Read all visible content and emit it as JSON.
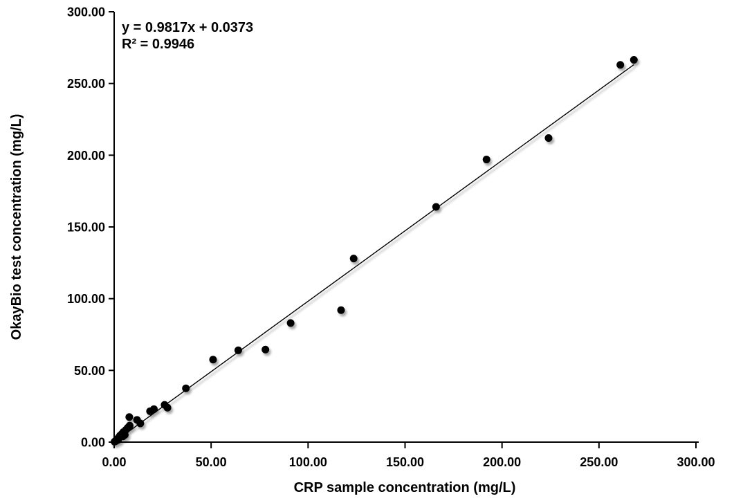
{
  "chart_data": {
    "type": "scatter",
    "title": "",
    "xlabel": "CRP sample concentration (mg/L)",
    "ylabel": "OkayBio test concentration (mg/L)",
    "equation": "y = 0.9817x + 0.0373",
    "r_squared": "R² = 0.9946",
    "xlim": [
      0,
      300
    ],
    "ylim": [
      0,
      300
    ],
    "x_ticks": {
      "values": [
        0,
        50,
        100,
        150,
        200,
        250,
        300
      ],
      "labels": [
        "0.00",
        "50.00",
        "100.00",
        "150.00",
        "200.00",
        "250.00",
        "300.00"
      ]
    },
    "y_ticks": {
      "values": [
        0,
        50,
        100,
        150,
        200,
        250,
        300
      ],
      "labels": [
        "0.00",
        "50.00",
        "100.00",
        "150.00",
        "200.00",
        "250.00",
        "300.00"
      ]
    },
    "grid": false,
    "legend": "none",
    "marker_color": "#000000",
    "line_color": "#000000",
    "background": "#ffffff",
    "points": [
      [
        0.2,
        0.3
      ],
      [
        0.8,
        1.0
      ],
      [
        1.0,
        0.8
      ],
      [
        1.5,
        2.0
      ],
      [
        2.0,
        1.5
      ],
      [
        2.3,
        3.2
      ],
      [
        3.0,
        4.5
      ],
      [
        3.8,
        5.5
      ],
      [
        4.5,
        4.0
      ],
      [
        4.7,
        7.0
      ],
      [
        5.5,
        5.0
      ],
      [
        6.0,
        8.5
      ],
      [
        7.0,
        10.0
      ],
      [
        8.0,
        11.5
      ],
      [
        7.8,
        17.5
      ],
      [
        11.8,
        15.5
      ],
      [
        13.5,
        13.0
      ],
      [
        18.5,
        21.5
      ],
      [
        20.5,
        23.0
      ],
      [
        26.0,
        26.0
      ],
      [
        27.5,
        24.0
      ],
      [
        37.0,
        37.5
      ],
      [
        51.0,
        57.5
      ],
      [
        64.0,
        64.0
      ],
      [
        78.0,
        64.5
      ],
      [
        91.0,
        83.0
      ],
      [
        117.0,
        92.0
      ],
      [
        123.5,
        128.0
      ],
      [
        166.0,
        164.0
      ],
      [
        192.0,
        197.0
      ],
      [
        224.0,
        212.0
      ],
      [
        261.0,
        263.0
      ],
      [
        268.0,
        266.5
      ]
    ],
    "trendline": {
      "slope": 0.9817,
      "intercept": 0.0373,
      "x_start": 0,
      "x_end": 268
    }
  }
}
